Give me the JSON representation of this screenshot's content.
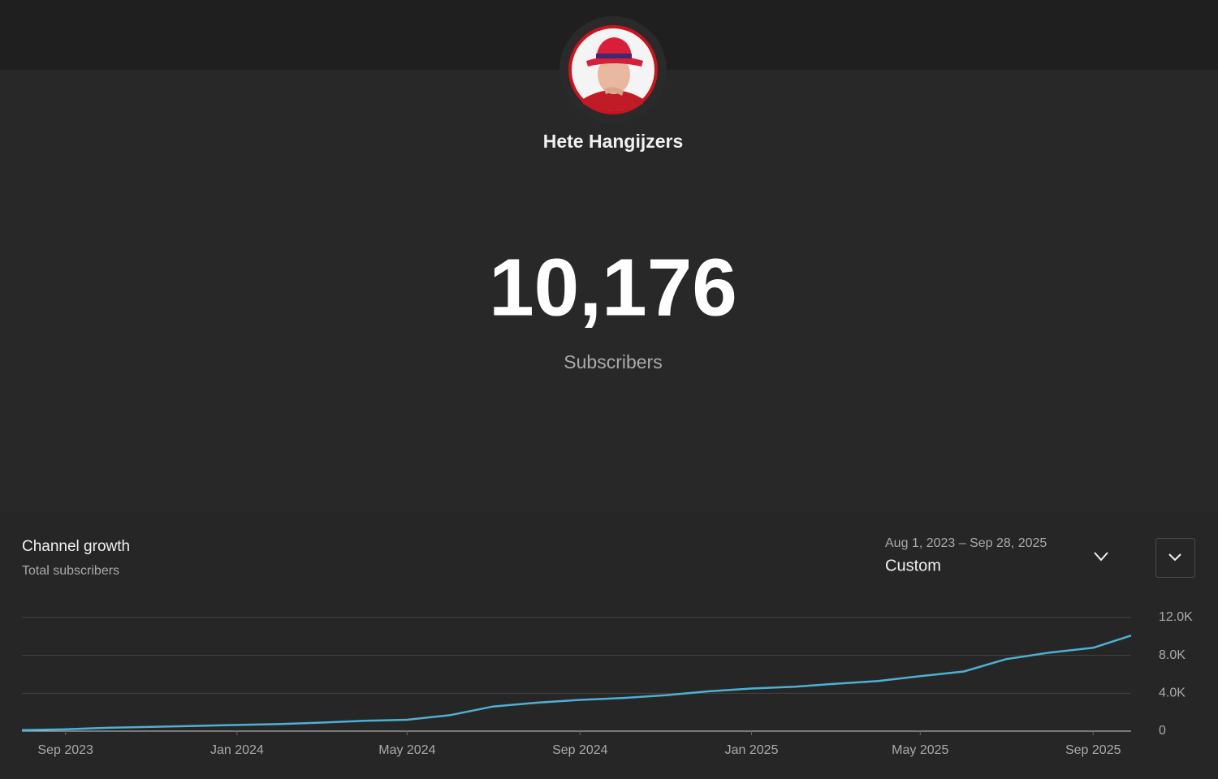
{
  "channel_name": "Hete Hangijzers",
  "subscriber_count": "10,176",
  "subscriber_label": "Subscribers",
  "chart_data": {
    "type": "line",
    "title": "Channel growth",
    "subtitle": "Total subscribers",
    "date_range": "Aug 1, 2023 – Sep 28, 2025",
    "range_option": "Custom",
    "x": [
      "2023-08",
      "2023-09",
      "2023-10",
      "2023-11",
      "2023-12",
      "2024-01",
      "2024-02",
      "2024-03",
      "2024-04",
      "2024-05",
      "2024-06",
      "2024-07",
      "2024-08",
      "2024-09",
      "2024-10",
      "2024-11",
      "2024-12",
      "2025-01",
      "2025-02",
      "2025-03",
      "2025-04",
      "2025-05",
      "2025-06",
      "2025-07",
      "2025-08",
      "2025-09",
      "2025-09-28"
    ],
    "values": [
      100,
      200,
      350,
      450,
      550,
      650,
      750,
      900,
      1100,
      1200,
      1700,
      2600,
      3000,
      3300,
      3500,
      3800,
      4200,
      4500,
      4700,
      5000,
      5300,
      5800,
      6300,
      7600,
      8300,
      8800,
      10100
    ],
    "color": "#4fb0d4",
    "xlim": [
      "2023-08",
      "2025-09-28"
    ],
    "xticks": [
      {
        "value": "2023-09",
        "label": "Sep 2023"
      },
      {
        "value": "2024-01",
        "label": "Jan 2024"
      },
      {
        "value": "2024-05",
        "label": "May 2024"
      },
      {
        "value": "2024-09",
        "label": "Sep 2024"
      },
      {
        "value": "2025-01",
        "label": "Jan 2025"
      },
      {
        "value": "2025-05",
        "label": "May 2025"
      },
      {
        "value": "2025-09",
        "label": "Sep 2025"
      }
    ],
    "ylim": [
      0,
      12000
    ],
    "yticks": [
      0,
      {
        "value": 4000,
        "label": "4.0K"
      },
      {
        "value": 8000,
        "label": "8.0K"
      },
      {
        "value": 12000,
        "label": "12.0K"
      }
    ],
    "grid": true
  }
}
